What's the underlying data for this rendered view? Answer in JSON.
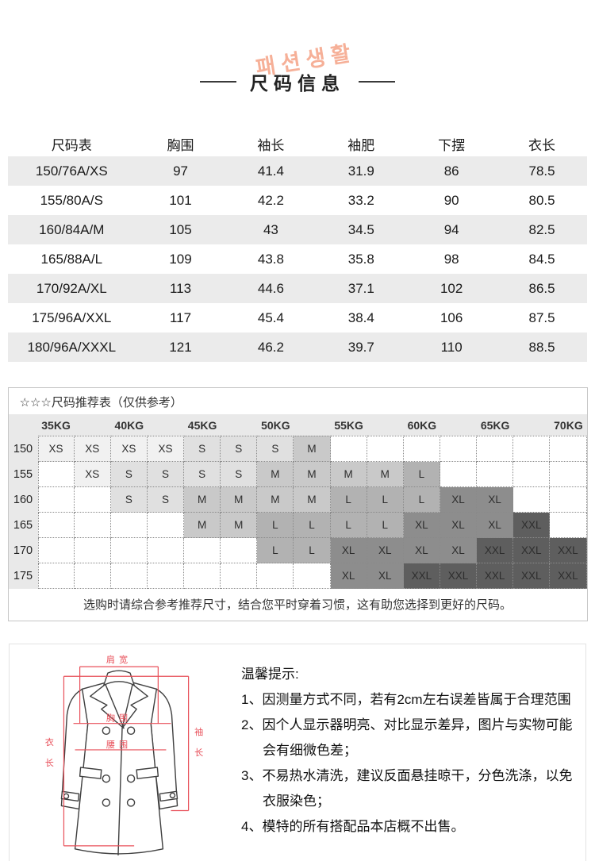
{
  "header": {
    "decor_text": "패션생활",
    "title": "尺码信息"
  },
  "size_table": {
    "columns": [
      "尺码表",
      "胸围",
      "袖长",
      "袖肥",
      "下摆",
      "衣长"
    ],
    "rows": [
      [
        "150/76A/XS",
        "97",
        "41.4",
        "31.9",
        "86",
        "78.5"
      ],
      [
        "155/80A/S",
        "101",
        "42.2",
        "33.2",
        "90",
        "80.5"
      ],
      [
        "160/84A/M",
        "105",
        "43",
        "34.5",
        "94",
        "82.5"
      ],
      [
        "165/88A/L",
        "109",
        "43.8",
        "35.8",
        "98",
        "84.5"
      ],
      [
        "170/92A/XL",
        "113",
        "44.6",
        "37.1",
        "102",
        "86.5"
      ],
      [
        "175/96A/XXL",
        "117",
        "45.4",
        "38.4",
        "106",
        "87.5"
      ],
      [
        "180/96A/XXXL",
        "121",
        "46.2",
        "39.7",
        "110",
        "88.5"
      ]
    ]
  },
  "recommend": {
    "title": "☆☆☆尺码推荐表（仅供参考）",
    "weights": [
      "35KG",
      "40KG",
      "45KG",
      "50KG",
      "55KG",
      "60KG",
      "65KG",
      "70KG"
    ],
    "heights": [
      "150",
      "155",
      "160",
      "165",
      "170",
      "175"
    ],
    "cells": [
      [
        "XS",
        "XS",
        "XS",
        "XS",
        "S",
        "S",
        "S",
        "M",
        "",
        "",
        "",
        "",
        "",
        "",
        ""
      ],
      [
        "",
        "XS",
        "S",
        "S",
        "S",
        "S",
        "M",
        "M",
        "M",
        "M",
        "L",
        "",
        "",
        "",
        ""
      ],
      [
        "",
        "",
        "S",
        "S",
        "M",
        "M",
        "M",
        "M",
        "L",
        "L",
        "L",
        "XL",
        "XL",
        "",
        ""
      ],
      [
        "",
        "",
        "",
        "",
        "M",
        "M",
        "L",
        "L",
        "L",
        "L",
        "XL",
        "XL",
        "XL",
        "XXL",
        ""
      ],
      [
        "",
        "",
        "",
        "",
        "",
        "",
        "L",
        "L",
        "XL",
        "XL",
        "XL",
        "XL",
        "XXL",
        "XXL",
        "XXL"
      ],
      [
        "",
        "",
        "",
        "",
        "",
        "",
        "",
        "",
        "XL",
        "XL",
        "XXL",
        "XXL",
        "XXL",
        "XXL",
        "XXL"
      ]
    ],
    "shade_colors": {
      "XS": "#f1f1f1",
      "S": "#e0e0e0",
      "M": "#c9c9c9",
      "L": "#b2b2b2",
      "XL": "#8d8d8d",
      "XXL": "#5e5e5e"
    },
    "note": "选购时请综合参考推荐尺寸，结合您平时穿着习惯，这有助您选择到更好的尺码。"
  },
  "tips": {
    "title": "温馨提示:",
    "items": [
      "1、因测量方式不同，若有2cm左右误差皆属于合理范围",
      "2、因个人显示器明亮、对比显示差异，图片与实物可能会有细微色差；",
      "3、不易热水清洗，建议反面悬挂晾干，分色洗涤，以免衣服染色；",
      "4、模特的所有搭配品本店概不出售。"
    ]
  },
  "diagram": {
    "accent": "#e8505a",
    "labels": {
      "shoulder": "肩宽",
      "chest": "胸围",
      "waist": "腰围",
      "length": "衣长",
      "sleeve": "袖长"
    }
  }
}
